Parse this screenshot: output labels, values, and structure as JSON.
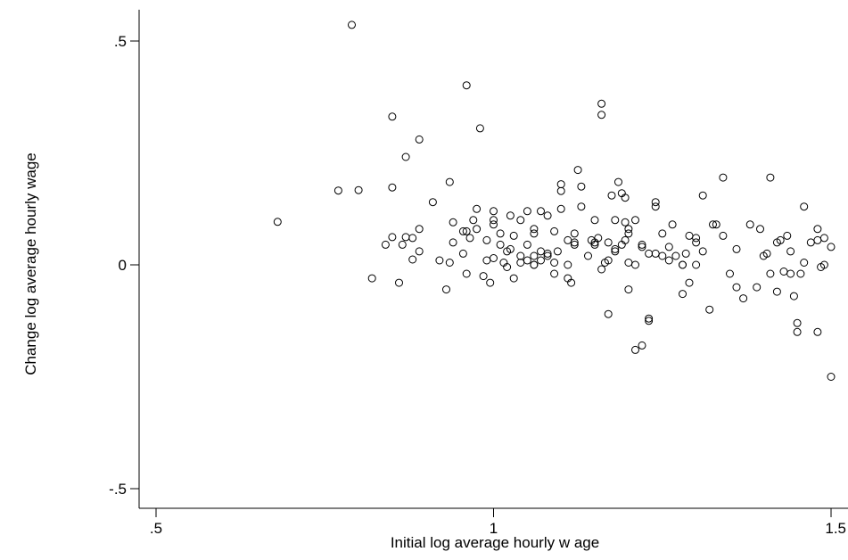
{
  "chart_data": {
    "type": "scatter",
    "title": "",
    "xlabel": "Initial log average hourly w age",
    "ylabel": "Change log average hourly wage",
    "xlim": [
      0.45,
      1.53
    ],
    "ylim": [
      -0.55,
      0.57
    ],
    "xticks": [
      {
        "value": 0.5,
        "label": ".5"
      },
      {
        "value": 1,
        "label": "1"
      },
      {
        "value": 1.5,
        "label": "1.5"
      }
    ],
    "yticks": [
      {
        "value": -0.5,
        "label": "-.5"
      },
      {
        "value": 0,
        "label": "0"
      },
      {
        "value": 0.5,
        "label": ".5"
      }
    ],
    "grid": false,
    "marker": "hollow-circle",
    "series": [
      {
        "points": [
          [
            0.68,
            0.096
          ],
          [
            0.77,
            0.166
          ],
          [
            0.79,
            0.536
          ],
          [
            0.8,
            0.167
          ],
          [
            0.82,
            -0.03
          ],
          [
            0.84,
            0.045
          ],
          [
            0.85,
            0.331
          ],
          [
            0.85,
            0.062
          ],
          [
            0.85,
            0.173
          ],
          [
            0.86,
            -0.04
          ],
          [
            0.865,
            0.045
          ],
          [
            0.87,
            0.062
          ],
          [
            0.87,
            0.241
          ],
          [
            0.88,
            0.012
          ],
          [
            0.88,
            0.06
          ],
          [
            0.89,
            0.08
          ],
          [
            0.89,
            0.28
          ],
          [
            0.89,
            0.03
          ],
          [
            0.91,
            0.14
          ],
          [
            0.92,
            0.01
          ],
          [
            0.93,
            -0.055
          ],
          [
            0.935,
            0.005
          ],
          [
            0.935,
            0.185
          ],
          [
            0.94,
            0.095
          ],
          [
            0.94,
            0.05
          ],
          [
            0.955,
            0.025
          ],
          [
            0.96,
            0.401
          ],
          [
            0.96,
            -0.02
          ],
          [
            0.965,
            0.06
          ],
          [
            0.97,
            0.1
          ],
          [
            0.975,
            0.125
          ],
          [
            0.975,
            0.08
          ],
          [
            0.98,
            0.305
          ],
          [
            0.985,
            -0.025
          ],
          [
            0.99,
            0.055
          ],
          [
            0.99,
            0.01
          ],
          [
            0.995,
            -0.04
          ],
          [
            1.0,
            0.09
          ],
          [
            1.0,
            0.12
          ],
          [
            1.0,
            0.1
          ],
          [
            1.01,
            0.07
          ],
          [
            1.01,
            0.045
          ],
          [
            1.015,
            0.005
          ],
          [
            1.02,
            0.03
          ],
          [
            1.02,
            -0.005
          ],
          [
            1.025,
            0.11
          ],
          [
            1.025,
            0.035
          ],
          [
            1.03,
            0.065
          ],
          [
            1.03,
            -0.03
          ],
          [
            1.04,
            0.1
          ],
          [
            1.04,
            0.005
          ],
          [
            1.04,
            0.02
          ],
          [
            1.05,
            0.045
          ],
          [
            1.05,
            0.12
          ],
          [
            1.05,
            0.01
          ],
          [
            1.06,
            0.08
          ],
          [
            1.06,
            0.07
          ],
          [
            1.06,
            0.0
          ],
          [
            1.07,
            0.03
          ],
          [
            1.07,
            0.12
          ],
          [
            1.07,
            0.01
          ],
          [
            1.08,
            0.025
          ],
          [
            1.08,
            0.11
          ],
          [
            1.08,
            0.02
          ],
          [
            1.09,
            -0.02
          ],
          [
            1.095,
            0.03
          ],
          [
            1.09,
            0.075
          ],
          [
            1.1,
            0.18
          ],
          [
            1.1,
            0.165
          ],
          [
            1.1,
            0.125
          ],
          [
            1.11,
            0.055
          ],
          [
            1.11,
            0.0
          ],
          [
            1.11,
            -0.03
          ],
          [
            1.115,
            -0.04
          ],
          [
            1.12,
            0.05
          ],
          [
            1.12,
            0.07
          ],
          [
            1.125,
            0.212
          ],
          [
            1.13,
            0.175
          ],
          [
            1.13,
            0.13
          ],
          [
            1.14,
            0.02
          ],
          [
            1.145,
            0.055
          ],
          [
            1.15,
            0.05
          ],
          [
            1.15,
            0.1
          ],
          [
            1.155,
            0.06
          ],
          [
            1.16,
            -0.01
          ],
          [
            1.16,
            0.335
          ],
          [
            1.16,
            0.36
          ],
          [
            1.165,
            0.005
          ],
          [
            1.17,
            -0.11
          ],
          [
            1.17,
            0.05
          ],
          [
            1.17,
            0.01
          ],
          [
            1.175,
            0.155
          ],
          [
            1.18,
            0.035
          ],
          [
            1.18,
            0.1
          ],
          [
            1.185,
            0.185
          ],
          [
            1.19,
            0.16
          ],
          [
            1.19,
            0.045
          ],
          [
            1.195,
            0.055
          ],
          [
            1.195,
            0.15
          ],
          [
            1.2,
            0.08
          ],
          [
            1.2,
            0.07
          ],
          [
            1.2,
            0.005
          ],
          [
            1.2,
            -0.055
          ],
          [
            1.21,
            0.1
          ],
          [
            1.21,
            0.0
          ],
          [
            1.21,
            -0.19
          ],
          [
            1.22,
            -0.18
          ],
          [
            1.22,
            0.04
          ],
          [
            1.23,
            -0.12
          ],
          [
            1.23,
            -0.125
          ],
          [
            1.23,
            0.025
          ],
          [
            1.24,
            0.025
          ],
          [
            1.24,
            0.14
          ],
          [
            1.24,
            0.13
          ],
          [
            1.25,
            0.07
          ],
          [
            1.25,
            0.02
          ],
          [
            1.26,
            0.01
          ],
          [
            1.26,
            0.04
          ],
          [
            1.27,
            0.02
          ],
          [
            1.28,
            -0.065
          ],
          [
            1.28,
            0.0
          ],
          [
            1.285,
            0.025
          ],
          [
            1.29,
            -0.04
          ],
          [
            1.29,
            0.065
          ],
          [
            1.3,
            0.0
          ],
          [
            1.3,
            0.06
          ],
          [
            1.31,
            0.155
          ],
          [
            1.31,
            0.03
          ],
          [
            1.32,
            -0.1
          ],
          [
            1.325,
            0.09
          ],
          [
            1.33,
            0.09
          ],
          [
            1.34,
            0.195
          ],
          [
            1.34,
            0.065
          ],
          [
            1.35,
            -0.02
          ],
          [
            1.36,
            0.035
          ],
          [
            1.36,
            -0.05
          ],
          [
            1.37,
            -0.075
          ],
          [
            1.38,
            0.09
          ],
          [
            1.39,
            -0.05
          ],
          [
            1.395,
            0.08
          ],
          [
            1.4,
            0.02
          ],
          [
            1.405,
            0.025
          ],
          [
            1.41,
            -0.02
          ],
          [
            1.41,
            0.195
          ],
          [
            1.42,
            -0.06
          ],
          [
            1.42,
            0.05
          ],
          [
            1.425,
            0.055
          ],
          [
            1.43,
            -0.015
          ],
          [
            1.435,
            0.065
          ],
          [
            1.44,
            -0.02
          ],
          [
            1.44,
            0.03
          ],
          [
            1.445,
            -0.07
          ],
          [
            1.45,
            -0.13
          ],
          [
            1.45,
            -0.15
          ],
          [
            1.455,
            -0.02
          ],
          [
            1.46,
            0.005
          ],
          [
            1.46,
            0.13
          ],
          [
            1.47,
            0.05
          ],
          [
            1.48,
            0.08
          ],
          [
            1.48,
            0.055
          ],
          [
            1.485,
            -0.005
          ],
          [
            1.49,
            0.06
          ],
          [
            1.49,
            0.0
          ],
          [
            1.5,
            0.04
          ],
          [
            1.5,
            -0.25
          ],
          [
            1.48,
            -0.15
          ],
          [
            1.28,
            0.0
          ],
          [
            1.12,
            0.045
          ],
          [
            1.0,
            0.015
          ],
          [
            0.96,
            0.075
          ],
          [
            0.955,
            0.075
          ],
          [
            1.06,
            0.02
          ],
          [
            1.15,
            0.045
          ],
          [
            1.18,
            0.03
          ],
          [
            1.195,
            0.095
          ],
          [
            1.22,
            0.045
          ],
          [
            1.265,
            0.09
          ],
          [
            1.3,
            0.05
          ],
          [
            1.06,
            0.0
          ],
          [
            1.09,
            0.005
          ]
        ]
      }
    ]
  }
}
